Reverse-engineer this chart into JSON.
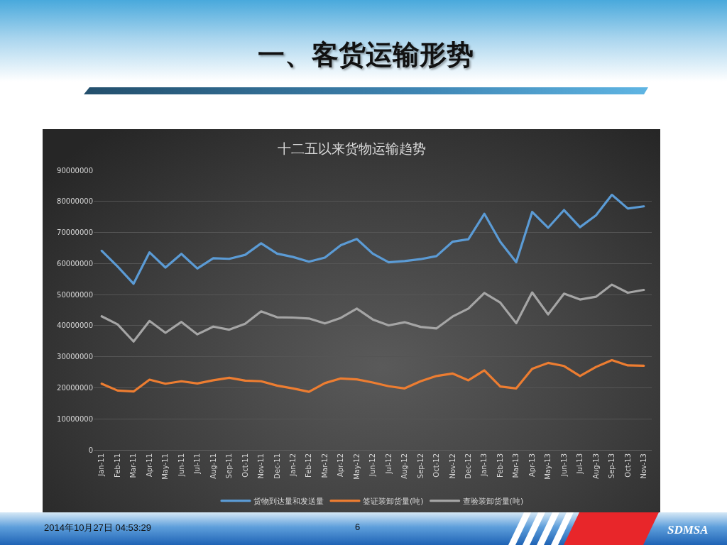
{
  "chart_data": {
    "type": "line",
    "title": "十二五以来货物运输趋势",
    "annotations": [
      "一、客货运输形势",
      "2014年10月27日  04:53:29",
      "6",
      "SDMSA"
    ],
    "categories": [
      "Jan-11",
      "Feb-11",
      "Mar-11",
      "Apr-11",
      "May-11",
      "Jun-11",
      "Jul-11",
      "Aug-11",
      "Sep-11",
      "Oct-11",
      "Nov-11",
      "Dec-11",
      "Jan-12",
      "Feb-12",
      "Mar-12",
      "Apr-12",
      "May-12",
      "Jun-12",
      "Jul-12",
      "Aug-12",
      "Sep-12",
      "Oct-12",
      "Nov-12",
      "Dec-12",
      "Jan-13",
      "Feb-13",
      "Mar-13",
      "Apr-13",
      "May-13",
      "Jun-13",
      "Jul-13",
      "Aug-13",
      "Sep-13",
      "Oct-13",
      "Nov-13"
    ],
    "series": [
      {
        "name": "货物到达量和发送量",
        "color": "#5b9bd5",
        "values": [
          64100000,
          59000000,
          53500000,
          63600000,
          58700000,
          63100000,
          58400000,
          61700000,
          61500000,
          62800000,
          66500000,
          63200000,
          62100000,
          60600000,
          61900000,
          65900000,
          67900000,
          63200000,
          60400000,
          60800000,
          61400000,
          62400000,
          67000000,
          67800000,
          76000000,
          67000000,
          60400000,
          76600000,
          71500000,
          77200000,
          71700000,
          75500000,
          82100000,
          77700000,
          78400000
        ]
      },
      {
        "name": "签证装卸货量(吨)",
        "color": "#ed7d31",
        "values": [
          21300000,
          19100000,
          18800000,
          22600000,
          21300000,
          22100000,
          21400000,
          22400000,
          23200000,
          22300000,
          22100000,
          20700000,
          19800000,
          18700000,
          21500000,
          23000000,
          22700000,
          21700000,
          20500000,
          19800000,
          22100000,
          23800000,
          24600000,
          22400000,
          25600000,
          20400000,
          19800000,
          26100000,
          28000000,
          27000000,
          23800000,
          26700000,
          28900000,
          27200000,
          27100000
        ]
      },
      {
        "name": "查验装卸货量(吨)",
        "color": "#a5a5a5",
        "values": [
          43000000,
          40400000,
          34900000,
          41500000,
          37700000,
          41200000,
          37200000,
          39700000,
          38700000,
          40600000,
          44600000,
          42700000,
          42600000,
          42300000,
          40700000,
          42500000,
          45500000,
          42000000,
          40100000,
          41100000,
          39600000,
          39100000,
          42900000,
          45500000,
          50500000,
          47400000,
          40800000,
          50700000,
          43600000,
          50300000,
          48400000,
          49300000,
          53200000,
          50600000,
          51500000
        ]
      }
    ],
    "ylim": [
      0,
      90000000
    ],
    "yticks": [
      0,
      10000000,
      20000000,
      30000000,
      40000000,
      50000000,
      60000000,
      70000000,
      80000000,
      90000000
    ],
    "grid": "y",
    "legend": "bottom",
    "marker": "none",
    "line_style": "solid"
  }
}
